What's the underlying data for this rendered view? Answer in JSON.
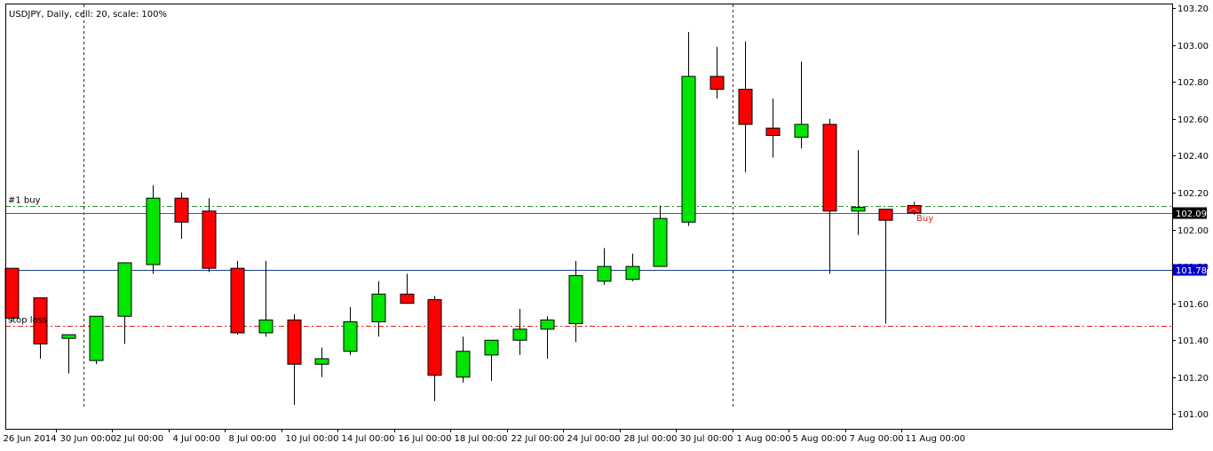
{
  "header": {
    "title": "USDJPY, Daily, cell: 20, scale: 100%"
  },
  "chart_data": {
    "type": "candlestick",
    "symbol": "USDJPY",
    "timeframe": "Daily",
    "ylim": [
      100.92,
      103.22
    ],
    "y_ticks": [
      "103.20",
      "103.00",
      "102.80",
      "102.60",
      "102.40",
      "102.20",
      "102.00",
      "101.80",
      "101.60",
      "101.40",
      "101.20",
      "101.00"
    ],
    "x_tick_labels": [
      "26 Jun 2014",
      "30 Jun 00:00",
      "2 Jul 00:00",
      "4 Jul 00:00",
      "8 Jul 00:00",
      "10 Jul 00:00",
      "14 Jul 00:00",
      "16 Jul 00:00",
      "18 Jul 00:00",
      "22 Jul 00:00",
      "24 Jul 00:00",
      "28 Jul 00:00",
      "30 Jul 00:00",
      "1 Aug 00:00",
      "5 Aug 00:00",
      "7 Aug 00:00",
      "11 Aug 00:00"
    ],
    "candles": [
      {
        "o": 101.79,
        "h": 101.79,
        "l": 101.5,
        "c": 101.52
      },
      {
        "o": 101.63,
        "h": 101.63,
        "l": 101.3,
        "c": 101.38
      },
      {
        "o": 101.41,
        "h": 101.43,
        "l": 101.22,
        "c": 101.43
      },
      {
        "o": 101.29,
        "h": 101.53,
        "l": 101.27,
        "c": 101.53
      },
      {
        "o": 101.53,
        "h": 101.82,
        "l": 101.38,
        "c": 101.82
      },
      {
        "o": 101.81,
        "h": 102.24,
        "l": 101.76,
        "c": 102.17
      },
      {
        "o": 102.17,
        "h": 102.2,
        "l": 101.95,
        "c": 102.04
      },
      {
        "o": 102.1,
        "h": 102.17,
        "l": 101.77,
        "c": 101.79
      },
      {
        "o": 101.79,
        "h": 101.83,
        "l": 101.43,
        "c": 101.44
      },
      {
        "o": 101.44,
        "h": 101.83,
        "l": 101.42,
        "c": 101.51
      },
      {
        "o": 101.51,
        "h": 101.54,
        "l": 101.05,
        "c": 101.27
      },
      {
        "o": 101.27,
        "h": 101.36,
        "l": 101.2,
        "c": 101.3
      },
      {
        "o": 101.34,
        "h": 101.58,
        "l": 101.32,
        "c": 101.5
      },
      {
        "o": 101.5,
        "h": 101.72,
        "l": 101.42,
        "c": 101.65
      },
      {
        "o": 101.65,
        "h": 101.76,
        "l": 101.61,
        "c": 101.6
      },
      {
        "o": 101.62,
        "h": 101.64,
        "l": 101.07,
        "c": 101.21
      },
      {
        "o": 101.2,
        "h": 101.42,
        "l": 101.17,
        "c": 101.34
      },
      {
        "o": 101.32,
        "h": 101.4,
        "l": 101.18,
        "c": 101.4
      },
      {
        "o": 101.4,
        "h": 101.57,
        "l": 101.32,
        "c": 101.46
      },
      {
        "o": 101.46,
        "h": 101.53,
        "l": 101.3,
        "c": 101.51
      },
      {
        "o": 101.49,
        "h": 101.83,
        "l": 101.39,
        "c": 101.75
      },
      {
        "o": 101.72,
        "h": 101.9,
        "l": 101.7,
        "c": 101.8
      },
      {
        "o": 101.73,
        "h": 101.87,
        "l": 101.72,
        "c": 101.8
      },
      {
        "o": 101.8,
        "h": 102.13,
        "l": 101.8,
        "c": 102.06
      },
      {
        "o": 102.04,
        "h": 103.07,
        "l": 102.02,
        "c": 102.83
      },
      {
        "o": 102.83,
        "h": 102.99,
        "l": 102.71,
        "c": 102.76
      },
      {
        "o": 102.76,
        "h": 103.02,
        "l": 102.31,
        "c": 102.57
      },
      {
        "o": 102.55,
        "h": 102.71,
        "l": 102.39,
        "c": 102.51
      },
      {
        "o": 102.5,
        "h": 102.91,
        "l": 102.44,
        "c": 102.57
      },
      {
        "o": 102.57,
        "h": 102.6,
        "l": 101.76,
        "c": 102.1
      },
      {
        "o": 102.1,
        "h": 102.43,
        "l": 101.97,
        "c": 102.12
      },
      {
        "o": 102.11,
        "h": 102.11,
        "l": 101.49,
        "c": 102.05
      },
      {
        "o": 102.13,
        "h": 102.15,
        "l": 102.08,
        "c": 102.09
      }
    ],
    "horizontal_lines": [
      {
        "label": "#1 buy",
        "price": 102.13,
        "color": "#2e8b2e",
        "style": "dashdot"
      },
      {
        "label": "",
        "price": 102.09,
        "color": "#4a5a8a",
        "style": "solid"
      },
      {
        "label": "",
        "price": 101.78,
        "color": "#1c3f8a",
        "style": "solid"
      },
      {
        "label": "stop loss",
        "price": 101.48,
        "color": "#e02020",
        "style": "dashdot"
      }
    ],
    "price_tags": [
      {
        "text": "102.09",
        "price": 102.09,
        "bg": "#000000",
        "fg": "#ffffff"
      },
      {
        "text": "101.78",
        "price": 101.78,
        "bg": "#0000cc",
        "fg": "#ffffff"
      }
    ],
    "period_separators_at_candles": [
      3,
      26
    ],
    "trade_marker": {
      "text": "Buy",
      "candle": 32,
      "price": 102.08,
      "color": "#e02020"
    },
    "colors": {
      "bull": "#00e600",
      "bear": "#ff0000",
      "outline": "#000000",
      "axis": "#000000",
      "background": "#ffffff"
    }
  }
}
